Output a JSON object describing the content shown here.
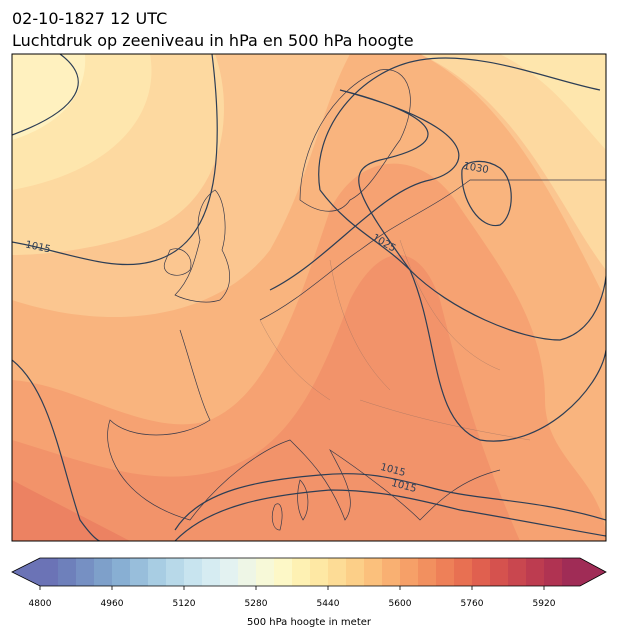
{
  "header": {
    "title": "02-10-1827 12 UTC",
    "subtitle": "Luchtdruk op zeeniveau in hPa en 500 hPa hoogte"
  },
  "map": {
    "contour_labels": [
      "1015",
      "1025",
      "1030",
      "1015",
      "1015"
    ]
  },
  "colorbar": {
    "lim": [
      4800,
      6000
    ],
    "ticks": [
      4800,
      4960,
      5120,
      5280,
      5440,
      5600,
      5760,
      5920
    ],
    "label": "500 hPa hoogte in meter",
    "colors": [
      "#6b73b6",
      "#6e80bb",
      "#7690c3",
      "#7ea0ca",
      "#88afd3",
      "#98bedb",
      "#a8cde3",
      "#b8d9e9",
      "#c8e4ef",
      "#d6ecf2",
      "#e3f2f1",
      "#eef6e6",
      "#f7f9d8",
      "#fdf8c7",
      "#fef1b3",
      "#fee8a4",
      "#fddc96",
      "#fccf88",
      "#fbc07c",
      "#f9b072",
      "#f6a068",
      "#f2905f",
      "#ee8058",
      "#e87052",
      "#e0604f",
      "#d5524e",
      "#c9474f",
      "#bd3c50",
      "#b03352",
      "#a02c56"
    ]
  }
}
